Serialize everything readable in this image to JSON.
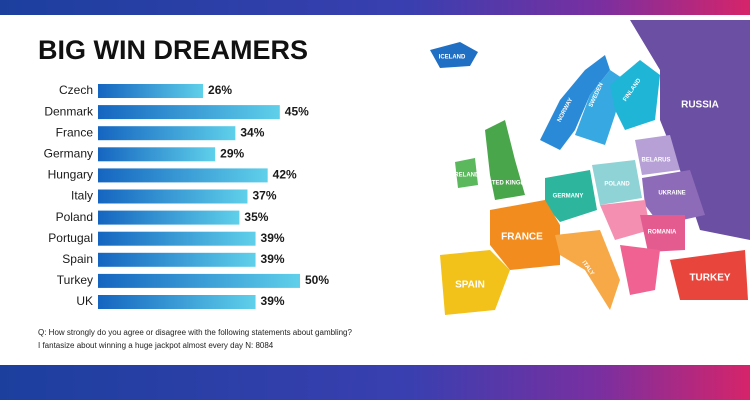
{
  "chart_data": {
    "type": "bar",
    "orientation": "horizontal",
    "title": "BIG WIN DREAMERS",
    "categories": [
      "Czech",
      "Denmark",
      "France",
      "Germany",
      "Hungary",
      "Italy",
      "Poland",
      "Portugal",
      "Spain",
      "Turkey",
      "UK"
    ],
    "values": [
      26,
      45,
      34,
      29,
      42,
      37,
      35,
      39,
      39,
      50,
      39
    ],
    "value_labels": [
      "26%",
      "45%",
      "34%",
      "29%",
      "42%",
      "37%",
      "35%",
      "39%",
      "39%",
      "50%",
      "39%"
    ],
    "colors": [
      "#1565c0",
      "#5fd0ea"
    ],
    "notes": [
      "Q: How strongly do you agree or disagree with the following statements about gambling?",
      "I fantasize about winning a huge jackpot almost every day N: 8084"
    ],
    "map_labels": [
      "ICELAND",
      "NORWAY",
      "SWEDEN",
      "FINLAND",
      "RUSSIA",
      "IRELAND",
      "UNITED KINGDOM",
      "GERMANY",
      "POLAND",
      "BELARUS",
      "UKRAINE",
      "FRANCE",
      "ROMANIA",
      "SPAIN",
      "ITALY",
      "TURKEY"
    ]
  }
}
